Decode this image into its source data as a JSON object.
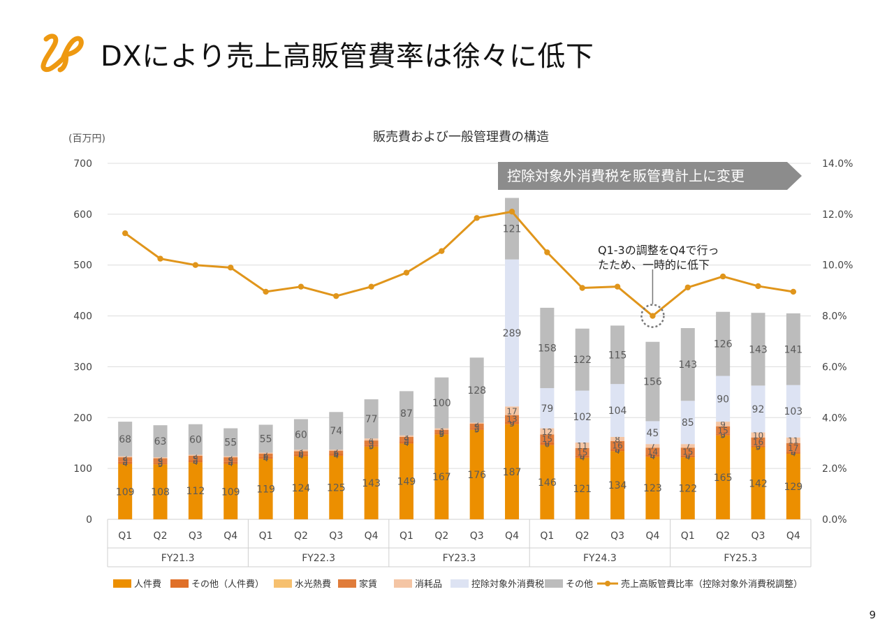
{
  "slide": {
    "title": "DXにより売上高販管費率は徐々に低下",
    "page_number": "9"
  },
  "logo": {
    "icon": "lp-logo-icon",
    "color": "#ee9911"
  },
  "chart_data": {
    "type": "bar",
    "title": "販売費および一般管理費の構造",
    "unit_label": "(百万円)",
    "y_left": {
      "min": 0,
      "max": 700,
      "ticks": [
        "0",
        "100",
        "200",
        "300",
        "400",
        "500",
        "600",
        "700"
      ]
    },
    "y_right": {
      "min": 0.0,
      "max": 14.0,
      "ticks": [
        "0.0%",
        "2.0%",
        "4.0%",
        "6.0%",
        "8.0%",
        "10.0%",
        "12.0%",
        "14.0%"
      ]
    },
    "categories": [
      "Q1",
      "Q2",
      "Q3",
      "Q4",
      "Q1",
      "Q2",
      "Q3",
      "Q4",
      "Q1",
      "Q2",
      "Q3",
      "Q4",
      "Q1",
      "Q2",
      "Q3",
      "Q4",
      "Q1",
      "Q2",
      "Q3",
      "Q4"
    ],
    "groups": [
      {
        "label": "FY21.3",
        "count": 4
      },
      {
        "label": "FY22.3",
        "count": 4
      },
      {
        "label": "FY23.3",
        "count": 4
      },
      {
        "label": "FY24.3",
        "count": 4
      },
      {
        "label": "FY25.3",
        "count": 4
      }
    ],
    "series": [
      {
        "name": "人件費",
        "color": "#ec8f00",
        "label_color": "#5a5a5a",
        "values": [
          109,
          108,
          112,
          109,
          119,
          124,
          125,
          143,
          149,
          167,
          176,
          187,
          146,
          121,
          134,
          123,
          122,
          165,
          142,
          129
        ]
      },
      {
        "name": "その他（人件費）",
        "color": "#e07028",
        "label_color": "#5a5a5a",
        "values": [
          4,
          3,
          4,
          4,
          4,
          4,
          4,
          3,
          4,
          3,
          3,
          5,
          6,
          4,
          4,
          4,
          4,
          3,
          3,
          4
        ]
      },
      {
        "name": "水光熱費",
        "color": "#f6c06f",
        "label_color": "#5a5a5a",
        "values": [
          0,
          0,
          0,
          0,
          0,
          0,
          0,
          0,
          0,
          0,
          0,
          0,
          0,
          0,
          0,
          0,
          0,
          0,
          0,
          0
        ]
      },
      {
        "name": "家賃",
        "color": "#e07c3a",
        "label_color": "#5a5a5a",
        "values": [
          9,
          9,
          9,
          9,
          6,
          6,
          6,
          9,
          9,
          6,
          9,
          13,
          15,
          15,
          16,
          14,
          15,
          15,
          16,
          17
        ]
      },
      {
        "name": "消耗品",
        "color": "#f4c5a4",
        "label_color": "#5a5a5a",
        "values": [
          2,
          2,
          2,
          2,
          2,
          3,
          2,
          4,
          3,
          3,
          2,
          17,
          12,
          11,
          8,
          7,
          7,
          9,
          10,
          11
        ]
      },
      {
        "name": "控除対象外消費税",
        "color": "#dde3f3",
        "label_color": "#5a5a5a",
        "values": [
          0,
          0,
          0,
          0,
          0,
          0,
          0,
          0,
          0,
          0,
          0,
          289,
          79,
          102,
          104,
          45,
          85,
          90,
          92,
          103
        ]
      },
      {
        "name": "その他",
        "color": "#bcbcbc",
        "label_color": "#5a5a5a",
        "values": [
          68,
          63,
          60,
          55,
          55,
          60,
          74,
          77,
          87,
          100,
          128,
          121,
          158,
          122,
          115,
          156,
          143,
          126,
          143,
          141
        ]
      }
    ],
    "line": {
      "name": "売上高販管費比率（控除対象外消費税調整）",
      "color": "#e0951b",
      "values": [
        11.25,
        10.25,
        10.0,
        9.9,
        8.95,
        9.15,
        8.78,
        9.15,
        9.7,
        10.55,
        11.85,
        12.1,
        10.5,
        9.1,
        9.15,
        8.0,
        9.12,
        9.55,
        9.17,
        8.95
      ]
    },
    "callout_banner": "控除対象外消費税を販管費計上に変更",
    "annotation": {
      "lines": [
        "Q1-3の調整をQ4で行っ",
        "たため、一時的に低下"
      ],
      "target_index": 15
    },
    "legend_position": "bottom",
    "grid": true
  }
}
